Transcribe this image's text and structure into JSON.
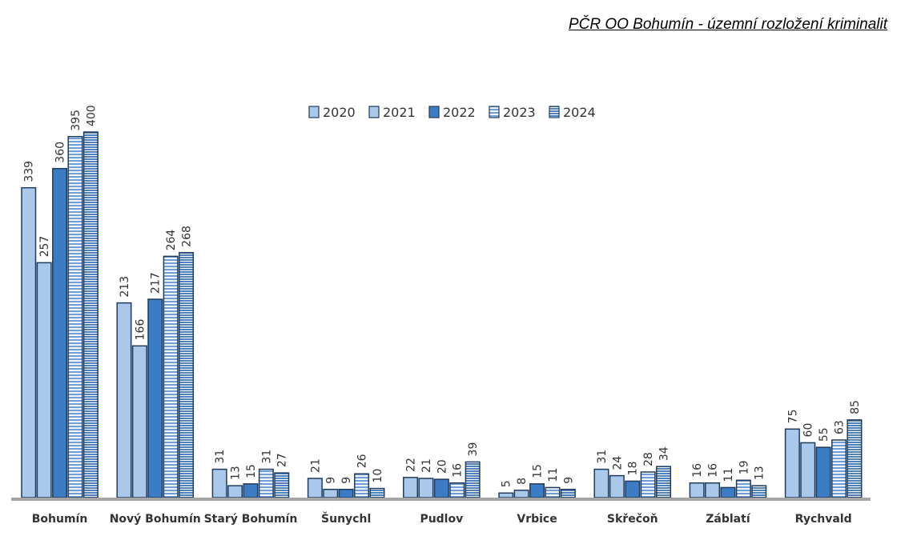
{
  "title": "PČR OO Bohumín - územní rozložení kriminalit",
  "chart_data": {
    "type": "bar",
    "categories": [
      "Bohumín",
      "Nový Bohumín",
      "Starý Bohumín",
      "Šunychl",
      "Pudlov",
      "Vrbice",
      "Skřečoň",
      "Záblatí",
      "Rychvald"
    ],
    "series": [
      {
        "name": "2020",
        "values": [
          339,
          213,
          31,
          21,
          22,
          5,
          31,
          16,
          75
        ],
        "color": "#a9c8ea",
        "pattern": "solid"
      },
      {
        "name": "2021",
        "values": [
          257,
          166,
          13,
          9,
          21,
          8,
          24,
          16,
          60
        ],
        "color": "#a9c8ea",
        "pattern": "solid"
      },
      {
        "name": "2022",
        "values": [
          360,
          217,
          15,
          9,
          20,
          15,
          18,
          11,
          55
        ],
        "color": "#3b7cc4",
        "pattern": "solid"
      },
      {
        "name": "2023",
        "values": [
          395,
          264,
          31,
          26,
          16,
          11,
          28,
          19,
          63
        ],
        "color": "#7aa8dc",
        "pattern": "horizontal-stripes"
      },
      {
        "name": "2024",
        "values": [
          400,
          268,
          27,
          10,
          39,
          9,
          34,
          13,
          85
        ],
        "color": "#5b8dc8",
        "pattern": "horizontal-stripes-dense"
      }
    ],
    "ylim": [
      0,
      420
    ],
    "legend_position": "top-center",
    "data_labels": true,
    "grid": false
  }
}
